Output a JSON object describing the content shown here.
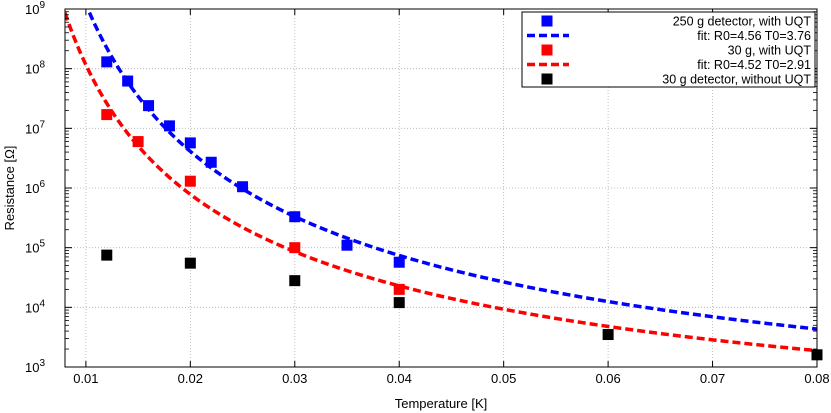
{
  "chart_data": {
    "type": "scatter",
    "xlabel": "Temperature [K]",
    "ylabel": "Resistance [Ω]",
    "xlim": [
      0.008,
      0.08
    ],
    "ylim": [
      1000,
      1000000000
    ],
    "yscale": "log",
    "grid": true,
    "legend_position": "top-right",
    "x_ticks": [
      0.01,
      0.02,
      0.03,
      0.04,
      0.05,
      0.06,
      0.07,
      0.08
    ],
    "x_tick_labels": [
      "0.01",
      "0.02",
      "0.03",
      "0.04",
      "0.05",
      "0.06",
      "0.07",
      "0.08"
    ],
    "y_ticks": [
      1000,
      10000,
      100000,
      1000000,
      10000000,
      100000000,
      1000000000
    ],
    "y_tick_exponents": [
      "3",
      "4",
      "5",
      "6",
      "7",
      "8",
      "9"
    ],
    "y_tick_base": "10",
    "series": [
      {
        "name": "250 g detector, with UQT",
        "kind": "points",
        "color": "#0000ff",
        "x": [
          0.012,
          0.014,
          0.016,
          0.018,
          0.02,
          0.022,
          0.025,
          0.03,
          0.035,
          0.04
        ],
        "y": [
          130000000,
          62000000,
          24000000,
          11000000,
          5700000,
          2700000,
          1050000,
          330000,
          110000,
          57000
        ]
      },
      {
        "name": "fit: R0=4.56 T0=3.76",
        "kind": "fit",
        "color": "#0000ff",
        "R0": 4.56,
        "T0": 3.76
      },
      {
        "name": "30 g, with UQT",
        "kind": "points",
        "color": "#ff0000",
        "x": [
          0.012,
          0.015,
          0.02,
          0.03,
          0.04
        ],
        "y": [
          17000000,
          6000000,
          1300000,
          100000,
          20000
        ]
      },
      {
        "name": "fit: R0=4.52 T0=2.91",
        "kind": "fit",
        "color": "#ff0000",
        "R0": 4.52,
        "T0": 2.91
      },
      {
        "name": "30 g detector, without UQT",
        "kind": "points",
        "color": "#000000",
        "x": [
          0.012,
          0.02,
          0.03,
          0.04,
          0.06,
          0.08
        ],
        "y": [
          75000,
          55000,
          28000,
          12000,
          3500,
          1600
        ]
      }
    ]
  }
}
